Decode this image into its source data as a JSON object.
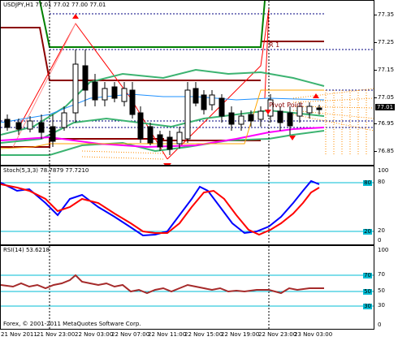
{
  "main": {
    "header": "USDJPY,H1  77.01 77.02 77.00 77.01",
    "current_price": "77.01",
    "price_ticks": [
      "77.35",
      "77.25",
      "77.15",
      "77.05",
      "76.95",
      "76.85"
    ],
    "r1_label": "R 1",
    "pivot_label": "Pivot Point"
  },
  "stoch": {
    "header": "Stoch(5,3,3) 78.7879 77.7210",
    "ticks": [
      "100",
      "80",
      "20",
      "0"
    ],
    "levels": [
      "80",
      "20"
    ]
  },
  "rsi": {
    "header": "RSI(14) 53.6218",
    "ticks": [
      "100",
      "70",
      "50",
      "30",
      "0"
    ],
    "levels": [
      "70",
      "50",
      "30"
    ]
  },
  "time_axis": [
    "21 Nov 2011",
    "21 Nov 23:00",
    "22 Nov 03:00",
    "22 Nov 07:00",
    "22 Nov 11:00",
    "22 Nov 15:00",
    "22 Nov 19:00",
    "22 Nov 23:00",
    "23 Nov 03:00"
  ],
  "copyright": "Forex, © 2001-2011 MetaQuotes Software Corp.",
  "colors": {
    "bull": "#ffffff",
    "bear": "#000000",
    "stoch_main": "#0000ff",
    "stoch_signal": "#ff0000",
    "rsi": "#a52a2a",
    "level": "#00bcd4",
    "bands": "#3cb371",
    "resistance": "#8b0000",
    "green_channel": "#008000",
    "magenta_ma": "#ff00ff",
    "orange": "#ffa500"
  }
}
